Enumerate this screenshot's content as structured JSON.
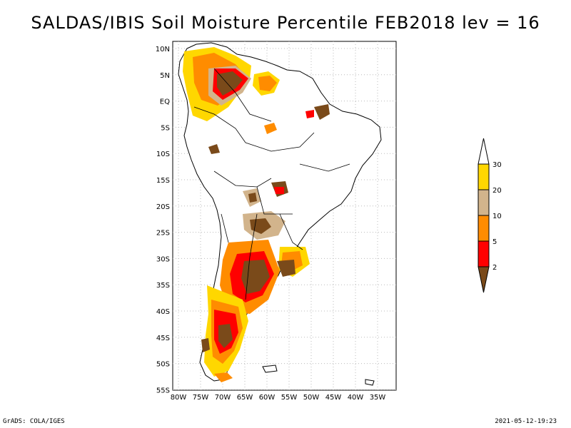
{
  "title": "SALDAS/IBIS Soil Moisture Percentile FEB2018 lev = 16",
  "footer": {
    "left": "GrADS: COLA/IGES",
    "right": "2021-05-12-19:23"
  },
  "axes": {
    "y_ticks": [
      "10N",
      "5N",
      "EQ",
      "5S",
      "10S",
      "15S",
      "20S",
      "25S",
      "30S",
      "35S",
      "40S",
      "45S",
      "50S",
      "55S"
    ],
    "x_ticks": [
      "80W",
      "75W",
      "70W",
      "65W",
      "60W",
      "55W",
      "50W",
      "45W",
      "40W",
      "35W"
    ],
    "lon_range": [
      -81,
      -31
    ],
    "lat_range": [
      -56,
      12
    ]
  },
  "colorbar": {
    "levels": [
      "2",
      "5",
      "10",
      "20",
      "30"
    ],
    "colors": [
      "#7a4a1a",
      "#ff0000",
      "#ff8c00",
      "#d2b48c",
      "#ffd700",
      "#ffffff"
    ]
  },
  "legend_semantics": "soil moisture percentile classes"
}
